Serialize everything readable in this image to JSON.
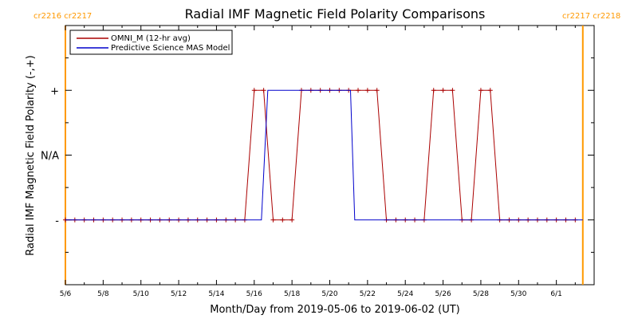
{
  "chart_data": {
    "type": "line",
    "title": "Radial IMF Magnetic Field Polarity Comparisons",
    "xlabel": "Month/Day from 2019-05-06 to 2019-06-02 (UT)",
    "ylabel": "Radial IMF Magnetic Field Polarity (-,+)",
    "x_unit": "day",
    "x_start": "2019-05-06",
    "xlim": [
      0,
      28
    ],
    "y_levels": [
      -1,
      0,
      1
    ],
    "ylim": [
      -2,
      2
    ],
    "x_tick_labels": [
      "5/6",
      "5/8",
      "5/10",
      "5/12",
      "5/14",
      "5/16",
      "5/18",
      "5/20",
      "5/22",
      "5/24",
      "5/26",
      "5/28",
      "5/30",
      "6/1"
    ],
    "x_tick_values": [
      0,
      2,
      4,
      6,
      8,
      10,
      12,
      14,
      16,
      18,
      20,
      22,
      24,
      26
    ],
    "y_tick_labels": [
      {
        "value": 1,
        "label": "+"
      },
      {
        "value": 0,
        "label": "N/A"
      },
      {
        "value": -1,
        "label": "-"
      }
    ],
    "carrington_labels": {
      "left": "cr2216 cr2217",
      "right": "cr2217 cr2218",
      "left_x": 0,
      "right_x": 27.4,
      "color": "#ff9900"
    },
    "series": [
      {
        "name": "OMNI_M (12-hr avg)",
        "color": "#aa0000",
        "markers": true,
        "points": [
          [
            0.0,
            -1
          ],
          [
            0.5,
            -1
          ],
          [
            1.0,
            -1
          ],
          [
            1.5,
            -1
          ],
          [
            2.0,
            -1
          ],
          [
            2.5,
            -1
          ],
          [
            3.0,
            -1
          ],
          [
            3.5,
            -1
          ],
          [
            4.0,
            -1
          ],
          [
            4.5,
            -1
          ],
          [
            5.0,
            -1
          ],
          [
            5.5,
            -1
          ],
          [
            6.0,
            -1
          ],
          [
            6.5,
            -1
          ],
          [
            7.0,
            -1
          ],
          [
            7.5,
            -1
          ],
          [
            8.0,
            -1
          ],
          [
            8.5,
            -1
          ],
          [
            9.0,
            -1
          ],
          [
            9.5,
            -1
          ],
          [
            10.0,
            1
          ],
          [
            10.5,
            1
          ],
          [
            11.0,
            -1
          ],
          [
            11.5,
            -1
          ],
          [
            12.0,
            -1
          ],
          [
            12.5,
            1
          ],
          [
            13.0,
            1
          ],
          [
            13.5,
            1
          ],
          [
            14.0,
            1
          ],
          [
            14.5,
            1
          ],
          [
            15.0,
            1
          ],
          [
            15.5,
            1
          ],
          [
            16.0,
            1
          ],
          [
            16.5,
            1
          ],
          [
            17.0,
            -1
          ],
          [
            17.5,
            -1
          ],
          [
            18.0,
            -1
          ],
          [
            18.5,
            -1
          ],
          [
            19.0,
            -1
          ],
          [
            19.5,
            1
          ],
          [
            20.0,
            1
          ],
          [
            20.5,
            1
          ],
          [
            21.0,
            -1
          ],
          [
            21.5,
            -1
          ],
          [
            22.0,
            1
          ],
          [
            22.5,
            1
          ],
          [
            23.0,
            -1
          ],
          [
            23.5,
            -1
          ],
          [
            24.0,
            -1
          ],
          [
            24.5,
            -1
          ],
          [
            25.0,
            -1
          ],
          [
            25.5,
            -1
          ],
          [
            26.0,
            -1
          ],
          [
            26.5,
            -1
          ],
          [
            27.0,
            -1
          ]
        ]
      },
      {
        "name": "Predictive Science MAS Model",
        "color": "#0000cc",
        "markers": false,
        "points": [
          [
            0.0,
            -1
          ],
          [
            10.38,
            -1
          ],
          [
            10.72,
            1
          ],
          [
            15.1,
            1
          ],
          [
            15.32,
            -1
          ],
          [
            27.4,
            -1
          ]
        ]
      }
    ],
    "legend_position": "top-left"
  }
}
